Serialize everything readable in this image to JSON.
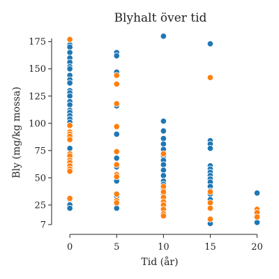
{
  "chart_data": {
    "type": "scatter",
    "title": "Blyhalt över tid",
    "xlabel": "Tid (år)",
    "ylabel": "Bly (mg/kg mossa)",
    "x_ticks": [
      0,
      5,
      10,
      15,
      20
    ],
    "y_ticks": [
      7,
      25,
      50,
      75,
      100,
      125,
      150,
      175
    ],
    "xlim": [
      -1.5,
      21
    ],
    "ylim": [
      7,
      178
    ],
    "grid": false,
    "legend": "none",
    "series": [
      {
        "color": "#1f77b4",
        "points": [
          [
            0,
            172
          ],
          [
            0,
            170
          ],
          [
            0,
            165
          ],
          [
            0,
            160
          ],
          [
            0,
            156
          ],
          [
            0,
            152
          ],
          [
            0,
            150
          ],
          [
            0,
            144
          ],
          [
            0,
            140
          ],
          [
            0,
            137
          ],
          [
            0,
            130
          ],
          [
            0,
            128
          ],
          [
            0,
            125
          ],
          [
            0,
            120
          ],
          [
            0,
            117
          ],
          [
            0,
            112
          ],
          [
            0,
            110
          ],
          [
            0,
            107
          ],
          [
            0,
            104
          ],
          [
            0,
            101
          ],
          [
            0,
            77
          ],
          [
            0,
            68
          ],
          [
            0,
            30
          ],
          [
            0,
            25
          ],
          [
            0,
            22
          ],
          [
            5,
            165
          ],
          [
            5,
            162
          ],
          [
            5,
            147
          ],
          [
            5,
            116
          ],
          [
            5,
            90
          ],
          [
            5,
            68
          ],
          [
            5,
            60
          ],
          [
            5,
            47
          ],
          [
            5,
            33
          ],
          [
            5,
            26
          ],
          [
            5,
            22
          ],
          [
            10,
            180
          ],
          [
            10,
            102
          ],
          [
            10,
            93
          ],
          [
            10,
            86
          ],
          [
            10,
            81
          ],
          [
            10,
            76
          ],
          [
            10,
            70
          ],
          [
            10,
            66
          ],
          [
            10,
            62
          ],
          [
            10,
            57
          ],
          [
            10,
            52
          ],
          [
            10,
            47
          ],
          [
            10,
            44
          ],
          [
            10,
            40
          ],
          [
            10,
            35
          ],
          [
            15,
            173
          ],
          [
            15,
            84
          ],
          [
            15,
            81
          ],
          [
            15,
            77
          ],
          [
            15,
            61
          ],
          [
            15,
            58
          ],
          [
            15,
            55
          ],
          [
            15,
            52
          ],
          [
            15,
            49
          ],
          [
            15,
            46
          ],
          [
            15,
            42
          ],
          [
            15,
            38
          ],
          [
            15,
            35
          ],
          [
            15,
            30
          ],
          [
            15,
            26
          ],
          [
            15,
            8
          ],
          [
            20,
            36
          ],
          [
            20,
            16
          ],
          [
            20,
            9
          ]
        ]
      },
      {
        "color": "#ff7f0e",
        "points": [
          [
            0,
            177
          ],
          [
            0,
            98
          ],
          [
            0,
            92
          ],
          [
            0,
            90
          ],
          [
            0,
            88
          ],
          [
            0,
            85
          ],
          [
            0,
            72
          ],
          [
            0,
            70
          ],
          [
            0,
            66
          ],
          [
            0,
            64
          ],
          [
            0,
            61
          ],
          [
            0,
            58
          ],
          [
            0,
            56
          ],
          [
            0,
            31
          ],
          [
            5,
            144
          ],
          [
            5,
            136
          ],
          [
            5,
            118
          ],
          [
            5,
            97
          ],
          [
            5,
            74
          ],
          [
            5,
            62
          ],
          [
            5,
            53
          ],
          [
            5,
            51
          ],
          [
            5,
            35
          ],
          [
            5,
            29
          ],
          [
            5,
            27
          ],
          [
            10,
            72
          ],
          [
            10,
            42
          ],
          [
            10,
            37
          ],
          [
            10,
            32
          ],
          [
            10,
            28
          ],
          [
            10,
            25
          ],
          [
            10,
            21
          ],
          [
            10,
            17
          ],
          [
            10,
            15
          ],
          [
            15,
            142
          ],
          [
            15,
            37
          ],
          [
            15,
            27
          ],
          [
            15,
            22
          ],
          [
            15,
            12
          ],
          [
            20,
            21
          ],
          [
            20,
            18
          ],
          [
            20,
            14
          ]
        ]
      }
    ]
  }
}
